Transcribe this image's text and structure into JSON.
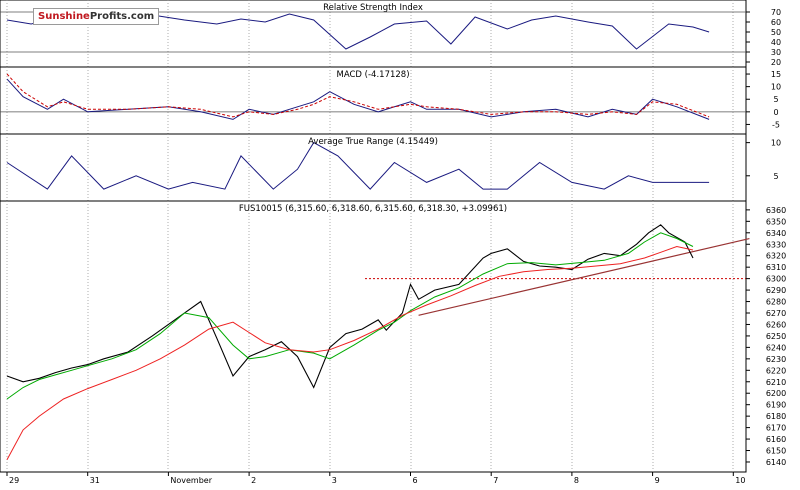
{
  "brand": {
    "part1": "Sunshine",
    "part2": "Profits",
    "suffix": ".com"
  },
  "chart_data": [
    {
      "type": "line",
      "panel": "rsi",
      "title": "Relative Strength Index",
      "ylim": [
        17,
        80
      ],
      "yticks": [
        20,
        30,
        40,
        50,
        60,
        70
      ],
      "reference_lines": [
        30,
        70
      ],
      "series": [
        {
          "color": "#1a1a80",
          "x": [
            0,
            0.3,
            0.6,
            0.9,
            1.2,
            1.5,
            1.8,
            2.2,
            2.6,
            2.9,
            3.2,
            3.5,
            3.8,
            4.2,
            4.5,
            4.8,
            5.2,
            5.5,
            5.8,
            6.2,
            6.5,
            6.8,
            7.2,
            7.5,
            7.8,
            8.2,
            8.5,
            8.7
          ],
          "y": [
            62,
            58,
            64,
            66,
            60,
            64,
            67,
            62,
            58,
            63,
            60,
            68,
            62,
            33,
            45,
            58,
            61,
            38,
            65,
            53,
            62,
            66,
            60,
            56,
            33,
            58,
            55,
            50
          ]
        }
      ]
    },
    {
      "type": "line",
      "panel": "macd",
      "title": "MACD (-4.17128)",
      "ylim": [
        -8,
        17
      ],
      "yticks": [
        -5,
        0,
        5,
        10,
        15
      ],
      "reference_lines": [
        0
      ],
      "series": [
        {
          "color": "#1a1a80",
          "x": [
            0,
            0.2,
            0.5,
            0.7,
            1.0,
            1.5,
            2.0,
            2.4,
            2.8,
            3.0,
            3.3,
            3.6,
            3.8,
            4.0,
            4.3,
            4.6,
            5.0,
            5.2,
            5.6,
            6.0,
            6.4,
            6.8,
            7.2,
            7.5,
            7.8,
            8.0,
            8.3,
            8.7
          ],
          "y": [
            13,
            6,
            1,
            5,
            0,
            1,
            2,
            0,
            -3,
            1,
            -1,
            2,
            4,
            8,
            3,
            0,
            4,
            1,
            1,
            -2,
            0,
            1,
            -2,
            1,
            -1,
            5,
            2,
            -3
          ]
        },
        {
          "color": "#cc0000",
          "dash": true,
          "x": [
            0,
            0.2,
            0.5,
            0.7,
            1.0,
            1.5,
            2.0,
            2.4,
            2.8,
            3.0,
            3.3,
            3.6,
            3.8,
            4.0,
            4.3,
            4.6,
            5.0,
            5.2,
            5.6,
            6.0,
            6.4,
            6.8,
            7.2,
            7.5,
            7.8,
            8.0,
            8.3,
            8.7
          ],
          "y": [
            15,
            8,
            2,
            4,
            1,
            1,
            2,
            1,
            -2,
            0,
            -1,
            1,
            3,
            6,
            4,
            1,
            3,
            2,
            1,
            -1,
            0,
            0,
            -1,
            0,
            -1,
            4,
            3,
            -2
          ]
        }
      ]
    },
    {
      "type": "line",
      "panel": "atr",
      "title": "Average True Range (4.15449)",
      "ylim": [
        1.5,
        11
      ],
      "yticks": [
        5,
        10
      ],
      "series": [
        {
          "color": "#1a1a80",
          "x": [
            0,
            0.5,
            0.8,
            1.2,
            1.6,
            2.0,
            2.3,
            2.7,
            2.9,
            3.3,
            3.6,
            3.8,
            4.1,
            4.5,
            4.8,
            5.2,
            5.6,
            5.9,
            6.2,
            6.6,
            7.0,
            7.4,
            7.7,
            8.0,
            8.4,
            8.7
          ],
          "y": [
            7,
            3,
            8,
            3,
            5,
            3,
            4,
            3,
            8,
            3,
            6,
            10,
            8,
            3,
            7,
            4,
            6,
            3,
            3,
            7,
            4,
            3,
            5,
            4,
            4,
            4
          ]
        }
      ]
    },
    {
      "type": "line",
      "panel": "price",
      "title": "FUS10015 (6,315.60, 6,318.60, 6,315.60, 6,318.30, +3.09961)",
      "ylim": [
        6133,
        6366
      ],
      "yticks": [
        6140,
        6150,
        6160,
        6170,
        6180,
        6190,
        6200,
        6210,
        6220,
        6230,
        6240,
        6250,
        6260,
        6270,
        6280,
        6290,
        6300,
        6310,
        6320,
        6330,
        6340,
        6350,
        6360
      ],
      "xticks": [
        {
          "x": 0,
          "label": "29"
        },
        {
          "x": 1,
          "label": "31"
        },
        {
          "x": 2,
          "label": "November"
        },
        {
          "x": 3,
          "label": "2"
        },
        {
          "x": 4,
          "label": "3"
        },
        {
          "x": 5,
          "label": "6"
        },
        {
          "x": 6,
          "label": "7"
        },
        {
          "x": 7,
          "label": "8"
        },
        {
          "x": 8,
          "label": "9"
        },
        {
          "x": 9,
          "label": "10"
        }
      ],
      "reference_lines": [
        6300
      ],
      "trendline": {
        "x": [
          5.1,
          9.2
        ],
        "y": [
          6268,
          6335
        ],
        "color": "#993333"
      },
      "series": [
        {
          "name": "",
          "color": "#000000",
          "x": [
            0,
            0.2,
            0.4,
            0.6,
            0.8,
            1.0,
            1.2,
            1.5,
            1.8,
            2.1,
            2.4,
            2.6,
            2.8,
            3.0,
            3.2,
            3.4,
            3.6,
            3.8,
            4.0,
            4.2,
            4.4,
            4.6,
            4.7,
            4.9,
            5.0,
            5.1,
            5.3,
            5.6,
            5.9,
            6.0,
            6.2,
            6.4,
            6.6,
            6.8,
            7.0,
            7.2,
            7.4,
            7.6,
            7.8,
            7.95,
            8.1,
            8.2,
            8.4,
            8.5
          ],
          "y": [
            6215,
            6210,
            6213,
            6218,
            6222,
            6225,
            6230,
            6236,
            6250,
            6265,
            6280,
            6248,
            6215,
            6232,
            6238,
            6245,
            6232,
            6205,
            6240,
            6252,
            6256,
            6264,
            6255,
            6270,
            6295,
            6282,
            6290,
            6295,
            6318,
            6322,
            6326,
            6315,
            6311,
            6310,
            6308,
            6317,
            6322,
            6320,
            6330,
            6340,
            6347,
            6340,
            6332,
            6318
          ]
        },
        {
          "name": "",
          "color": "#00aa00",
          "x": [
            0,
            0.2,
            0.4,
            0.6,
            0.8,
            1.0,
            1.3,
            1.6,
            1.9,
            2.2,
            2.5,
            2.8,
            3.0,
            3.2,
            3.5,
            3.8,
            4.0,
            4.3,
            4.6,
            4.8,
            5.0,
            5.3,
            5.6,
            5.9,
            6.2,
            6.5,
            6.8,
            7.1,
            7.4,
            7.7,
            7.9,
            8.1,
            8.3,
            8.5
          ],
          "y": [
            6195,
            6205,
            6212,
            6216,
            6220,
            6224,
            6230,
            6238,
            6252,
            6270,
            6266,
            6242,
            6230,
            6232,
            6238,
            6235,
            6230,
            6242,
            6255,
            6262,
            6272,
            6284,
            6292,
            6304,
            6313,
            6314,
            6312,
            6314,
            6316,
            6322,
            6332,
            6340,
            6335,
            6328
          ]
        },
        {
          "name": "",
          "color": "#ee2222",
          "x": [
            0,
            0.2,
            0.4,
            0.7,
            1.0,
            1.3,
            1.6,
            1.9,
            2.2,
            2.5,
            2.8,
            3.0,
            3.2,
            3.5,
            3.8,
            4.0,
            4.3,
            4.6,
            4.9,
            5.2,
            5.5,
            5.8,
            6.1,
            6.4,
            6.7,
            7.0,
            7.3,
            7.6,
            7.9,
            8.1,
            8.3,
            8.5
          ],
          "y": [
            6142,
            6168,
            6180,
            6195,
            6204,
            6212,
            6220,
            6230,
            6242,
            6256,
            6262,
            6253,
            6244,
            6238,
            6236,
            6238,
            6246,
            6256,
            6268,
            6277,
            6285,
            6294,
            6302,
            6306,
            6308,
            6309,
            6311,
            6313,
            6318,
            6323,
            6328,
            6325
          ]
        }
      ]
    }
  ]
}
